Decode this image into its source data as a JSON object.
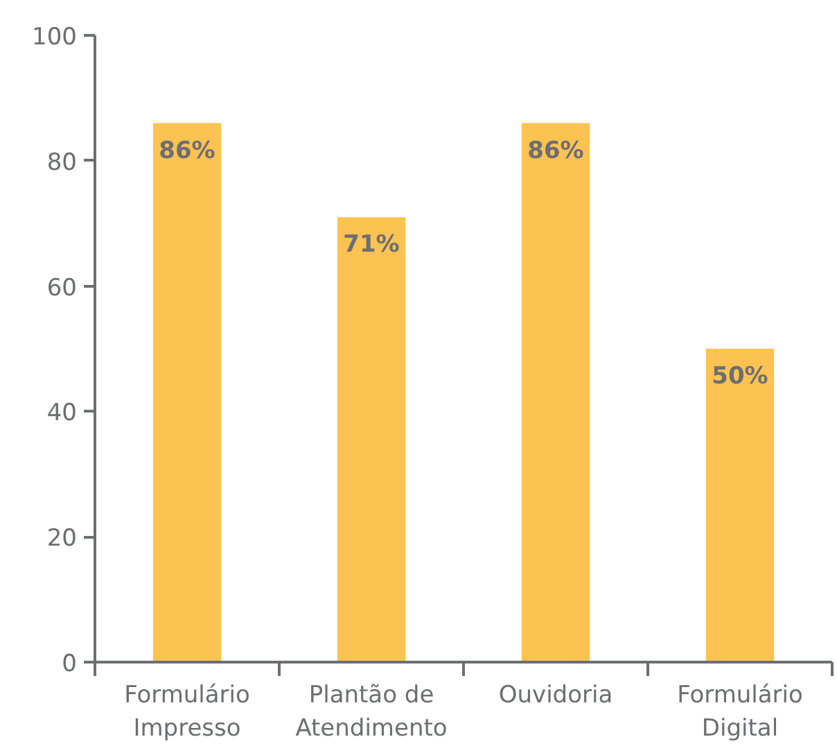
{
  "chart_data": {
    "type": "bar",
    "categories": [
      "Formulário Impresso",
      "Plantão de Atendimento",
      "Ouvidoria",
      "Formulário Digital"
    ],
    "values": [
      86,
      71,
      86,
      50
    ],
    "color": "#fdc352",
    "value_labels": [
      "86%",
      "71%",
      "86%",
      "50%"
    ],
    "ylim": [
      0,
      100
    ],
    "yticks": [
      0,
      20,
      40,
      60,
      80,
      100
    ],
    "grid": false
  }
}
